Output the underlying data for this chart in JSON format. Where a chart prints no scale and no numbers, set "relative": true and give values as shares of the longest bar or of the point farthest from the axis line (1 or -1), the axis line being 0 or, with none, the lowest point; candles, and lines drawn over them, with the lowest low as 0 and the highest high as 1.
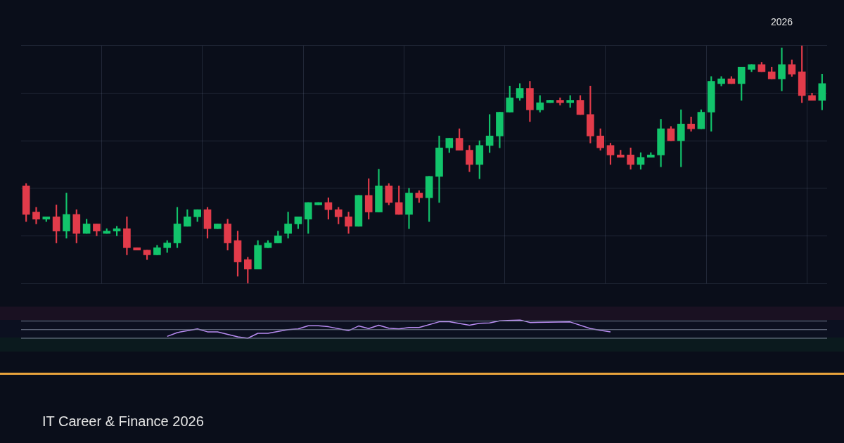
{
  "chart_data": [
    {
      "type": "candlestick",
      "relative": true,
      "grid": true,
      "categories": [
        null,
        null,
        null,
        null,
        null,
        null,
        null,
        null,
        null,
        null,
        null,
        null,
        null,
        null,
        null,
        null,
        null,
        null,
        null,
        null,
        null,
        null,
        null,
        null,
        null,
        null,
        null,
        null,
        null,
        null,
        null,
        null,
        null,
        null,
        null,
        null,
        null,
        null,
        null,
        null,
        null,
        null,
        null,
        null,
        null,
        null,
        null,
        null,
        null,
        null,
        null,
        null,
        null,
        null,
        null,
        null,
        null,
        null,
        null,
        null,
        null,
        null,
        null,
        null,
        null,
        null,
        null,
        null,
        null,
        null,
        null,
        null,
        null,
        null,
        null,
        "2026",
        null,
        null,
        null,
        null
      ],
      "ohlc": [
        [
          0.41,
          0.42,
          0.26,
          0.29
        ],
        [
          0.3,
          0.32,
          0.25,
          0.27
        ],
        [
          0.27,
          0.28,
          0.26,
          0.28
        ],
        [
          0.28,
          0.33,
          0.17,
          0.22
        ],
        [
          0.22,
          0.38,
          0.19,
          0.29
        ],
        [
          0.29,
          0.31,
          0.17,
          0.21
        ],
        [
          0.21,
          0.27,
          0.21,
          0.25
        ],
        [
          0.25,
          0.25,
          0.2,
          0.22
        ],
        [
          0.21,
          0.23,
          0.21,
          0.22
        ],
        [
          0.22,
          0.24,
          0.2,
          0.23
        ],
        [
          0.23,
          0.28,
          0.12,
          0.15
        ],
        [
          0.15,
          0.15,
          0.14,
          0.14
        ],
        [
          0.14,
          0.14,
          0.1,
          0.12
        ],
        [
          0.12,
          0.16,
          0.12,
          0.15
        ],
        [
          0.15,
          0.18,
          0.13,
          0.17
        ],
        [
          0.17,
          0.32,
          0.15,
          0.25
        ],
        [
          0.24,
          0.31,
          0.24,
          0.28
        ],
        [
          0.28,
          0.31,
          0.26,
          0.31
        ],
        [
          0.31,
          0.32,
          0.19,
          0.23
        ],
        [
          0.23,
          0.25,
          0.23,
          0.25
        ],
        [
          0.25,
          0.27,
          0.14,
          0.17
        ],
        [
          0.18,
          0.22,
          0.03,
          0.09
        ],
        [
          0.1,
          0.11,
          0,
          0.06
        ],
        [
          0.06,
          0.18,
          0.06,
          0.16
        ],
        [
          0.15,
          0.18,
          0.15,
          0.17
        ],
        [
          0.17,
          0.22,
          0.17,
          0.2
        ],
        [
          0.21,
          0.3,
          0.19,
          0.25
        ],
        [
          0.25,
          0.28,
          0.23,
          0.28
        ],
        [
          0.27,
          0.34,
          0.21,
          0.34
        ],
        [
          0.33,
          0.34,
          0.33,
          0.34
        ],
        [
          0.34,
          0.36,
          0.27,
          0.31
        ],
        [
          0.31,
          0.32,
          0.25,
          0.28
        ],
        [
          0.28,
          0.3,
          0.21,
          0.24
        ],
        [
          0.24,
          0.37,
          0.24,
          0.37
        ],
        [
          0.37,
          0.44,
          0.27,
          0.3
        ],
        [
          0.3,
          0.48,
          0.3,
          0.41
        ],
        [
          0.41,
          0.42,
          0.33,
          0.34
        ],
        [
          0.34,
          0.41,
          0.29,
          0.29
        ],
        [
          0.29,
          0.4,
          0.23,
          0.38
        ],
        [
          0.38,
          0.39,
          0.34,
          0.36
        ],
        [
          0.36,
          0.45,
          0.26,
          0.45
        ],
        [
          0.45,
          0.62,
          0.34,
          0.57
        ],
        [
          0.57,
          0.61,
          0.55,
          0.61
        ],
        [
          0.61,
          0.65,
          0.56,
          0.56
        ],
        [
          0.56,
          0.58,
          0.47,
          0.5
        ],
        [
          0.5,
          0.6,
          0.44,
          0.58
        ],
        [
          0.58,
          0.71,
          0.55,
          0.62
        ],
        [
          0.62,
          0.72,
          0.57,
          0.72
        ],
        [
          0.72,
          0.83,
          0.72,
          0.78
        ],
        [
          0.78,
          0.84,
          0.77,
          0.82
        ],
        [
          0.82,
          0.85,
          0.68,
          0.73
        ],
        [
          0.73,
          0.79,
          0.72,
          0.76
        ],
        [
          0.76,
          0.77,
          0.76,
          0.77
        ],
        [
          0.77,
          0.78,
          0.75,
          0.76
        ],
        [
          0.76,
          0.79,
          0.74,
          0.77
        ],
        [
          0.77,
          0.79,
          0.71,
          0.71
        ],
        [
          0.71,
          0.83,
          0.59,
          0.62
        ],
        [
          0.62,
          0.65,
          0.56,
          0.57
        ],
        [
          0.58,
          0.59,
          0.5,
          0.54
        ],
        [
          0.54,
          0.56,
          0.53,
          0.53
        ],
        [
          0.54,
          0.57,
          0.48,
          0.5
        ],
        [
          0.5,
          0.55,
          0.48,
          0.53
        ],
        [
          0.53,
          0.55,
          0.53,
          0.54
        ],
        [
          0.54,
          0.69,
          0.49,
          0.65
        ],
        [
          0.65,
          0.66,
          0.6,
          0.6
        ],
        [
          0.6,
          0.73,
          0.49,
          0.67
        ],
        [
          0.67,
          0.7,
          0.64,
          0.65
        ],
        [
          0.65,
          0.73,
          0.65,
          0.72
        ],
        [
          0.72,
          0.87,
          0.64,
          0.85
        ],
        [
          0.84,
          0.87,
          0.83,
          0.86
        ],
        [
          0.86,
          0.87,
          0.84,
          0.84
        ],
        [
          0.84,
          0.91,
          0.77,
          0.91
        ],
        [
          0.9,
          0.92,
          0.89,
          0.92
        ],
        [
          0.92,
          0.93,
          0.89,
          0.89
        ],
        [
          0.89,
          0.91,
          0.86,
          0.86
        ],
        [
          0.86,
          0.99,
          0.81,
          0.92
        ],
        [
          0.92,
          0.94,
          0.87,
          0.88
        ],
        [
          0.89,
          1,
          0.76,
          0.79
        ],
        [
          0.79,
          0.8,
          0.77,
          0.77
        ],
        [
          0.77,
          0.88,
          0.73,
          0.84
        ]
      ],
      "colors": [
        "#e23b4a",
        "#e23b4a",
        "#12c46b",
        "#e23b4a",
        "#12c46b",
        "#e23b4a",
        "#12c46b",
        "#e23b4a",
        "#12c46b",
        "#12c46b",
        "#e23b4a",
        "#e23b4a",
        "#e23b4a",
        "#12c46b",
        "#12c46b",
        "#12c46b",
        "#12c46b",
        "#12c46b",
        "#e23b4a",
        "#12c46b",
        "#e23b4a",
        "#e23b4a",
        "#e23b4a",
        "#12c46b",
        "#12c46b",
        "#12c46b",
        "#12c46b",
        "#12c46b",
        "#12c46b",
        "#12c46b",
        "#e23b4a",
        "#e23b4a",
        "#e23b4a",
        "#12c46b",
        "#e23b4a",
        "#12c46b",
        "#e23b4a",
        "#e23b4a",
        "#12c46b",
        "#e23b4a",
        "#12c46b",
        "#12c46b",
        "#12c46b",
        "#e23b4a",
        "#e23b4a",
        "#12c46b",
        "#12c46b",
        "#12c46b",
        "#12c46b",
        "#12c46b",
        "#e23b4a",
        "#12c46b",
        "#12c46b",
        "#e23b4a",
        "#12c46b",
        "#e23b4a",
        "#e23b4a",
        "#e23b4a",
        "#e23b4a",
        "#e23b4a",
        "#e23b4a",
        "#12c46b",
        "#12c46b",
        "#12c46b",
        "#e23b4a",
        "#12c46b",
        "#e23b4a",
        "#12c46b",
        "#12c46b",
        "#12c46b",
        "#e23b4a",
        "#12c46b",
        "#12c46b",
        "#e23b4a",
        "#e23b4a",
        "#12c46b",
        "#e23b4a",
        "#e23b4a",
        "#e23b4a",
        "#12c46b"
      ],
      "annotations": [
        "IT Career & Finance 2026"
      ]
    },
    {
      "type": "line",
      "relative": true,
      "tick_labels": false,
      "ref_lines": [
        {
          "axis": "y",
          "value": 0.94,
          "color": "#7a8296"
        },
        {
          "axis": "y",
          "value": 0.47,
          "color": "#7a8296"
        },
        {
          "axis": "y",
          "value": 0,
          "color": "#7a8296"
        }
      ],
      "categories": [
        null,
        null,
        null,
        null,
        null,
        null,
        null,
        null,
        null,
        null,
        null,
        null,
        null,
        null,
        null,
        null,
        null,
        null,
        null,
        null,
        null,
        null,
        null,
        null,
        null,
        null,
        null,
        null,
        null,
        null,
        null,
        null,
        null,
        null,
        null,
        null,
        null,
        null,
        null,
        null,
        null,
        null,
        null,
        null,
        null,
        null,
        null,
        null,
        null,
        null,
        null,
        null,
        null,
        null,
        null,
        null,
        null,
        null,
        null,
        null,
        null,
        null,
        null,
        null,
        null,
        null,
        null,
        null,
        null,
        null,
        null,
        null,
        null,
        null,
        null,
        null,
        null,
        null,
        null,
        null
      ],
      "series": [
        {
          "color": "#b98cf2",
          "values": [
            null,
            null,
            null,
            null,
            null,
            null,
            null,
            null,
            null,
            null,
            null,
            null,
            null,
            null,
            0.1,
            0.31,
            null,
            0.51,
            0.35,
            0.35,
            null,
            0.08,
            0,
            0.27,
            0.27,
            null,
            0.47,
            0.51,
            0.68,
            0.68,
            0.63,
            null,
            0.41,
            0.67,
            0.53,
            0.71,
            0.55,
            0.51,
            0.59,
            0.59,
            null,
            0.9,
            0.9,
            null,
            0.71,
            0.82,
            0.84,
            0.95,
            null,
            1,
            0.86,
            null,
            null,
            null,
            0.89,
            null,
            0.53,
            0.43,
            0.35,
            null,
            null,
            null,
            null,
            null,
            null,
            null,
            null,
            null,
            null,
            null,
            null,
            null,
            null,
            null,
            null,
            null,
            null,
            null,
            null,
            null
          ]
        }
      ]
    }
  ]
}
